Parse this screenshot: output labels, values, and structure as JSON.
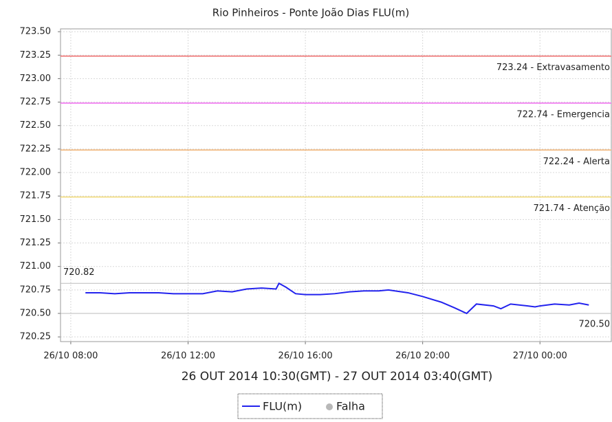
{
  "chart_data": {
    "type": "line",
    "title": "Rio Pinheiros - Ponte João Dias FLU(m)",
    "x_label": "26 OUT 2014 10:30(GMT) - 27 OUT 2014 03:40(GMT)",
    "x": [
      "2014-10-26 08:30",
      "2014-10-26 09:00",
      "2014-10-26 09:30",
      "2014-10-26 10:00",
      "2014-10-26 10:30",
      "2014-10-26 11:00",
      "2014-10-26 11:30",
      "2014-10-26 12:00",
      "2014-10-26 12:30",
      "2014-10-26 13:00",
      "2014-10-26 13:30",
      "2014-10-26 14:00",
      "2014-10-26 14:30",
      "2014-10-26 15:00",
      "2014-10-26 15:06",
      "2014-10-26 15:20",
      "2014-10-26 15:40",
      "2014-10-26 16:00",
      "2014-10-26 16:30",
      "2014-10-26 17:00",
      "2014-10-26 17:30",
      "2014-10-26 18:00",
      "2014-10-26 18:30",
      "2014-10-26 18:50",
      "2014-10-26 19:30",
      "2014-10-26 20:00",
      "2014-10-26 20:38",
      "2014-10-26 21:05",
      "2014-10-26 21:30",
      "2014-10-26 21:50",
      "2014-10-26 22:25",
      "2014-10-26 22:40",
      "2014-10-26 23:00",
      "2014-10-26 23:35",
      "2014-10-26 23:50",
      "2014-10-27 00:00",
      "2014-10-27 00:30",
      "2014-10-27 01:00",
      "2014-10-27 01:20",
      "2014-10-27 01:40"
    ],
    "series": [
      {
        "name": "FLU(m)",
        "color": "#2222ee",
        "values": [
          720.72,
          720.72,
          720.71,
          720.72,
          720.72,
          720.72,
          720.71,
          720.71,
          720.71,
          720.74,
          720.73,
          720.76,
          720.77,
          720.76,
          720.82,
          720.78,
          720.71,
          720.7,
          720.7,
          720.71,
          720.73,
          720.74,
          720.74,
          720.75,
          720.72,
          720.68,
          720.62,
          720.56,
          720.5,
          720.6,
          720.58,
          720.55,
          720.6,
          720.58,
          720.57,
          720.58,
          720.6,
          720.59,
          720.61,
          720.59
        ]
      }
    ],
    "failure_marker": {
      "name": "Falha",
      "color": "#b8b8b8"
    },
    "thresholds": [
      {
        "value": 723.24,
        "label": "723.24 - Extravasamento",
        "color": "#ee6666"
      },
      {
        "value": 722.74,
        "label": "722.74 - Emergencia",
        "color": "#ee66ee"
      },
      {
        "value": 722.24,
        "label": "722.24 - Alerta",
        "color": "#f0b070"
      },
      {
        "value": 721.74,
        "label": "721.74 - Atenção",
        "color": "#f0d870"
      }
    ],
    "max_line": {
      "value": 720.82,
      "label": "720.82",
      "color": "#bbbbbb"
    },
    "min_line": {
      "value": 720.5,
      "label": "720.50",
      "color": "#bbbbbb"
    },
    "xlim": [
      "2014-10-26 07:39",
      "2014-10-27 02:26"
    ],
    "xticks": [
      {
        "value": "2014-10-26 08:00",
        "label": "26/10 08:00"
      },
      {
        "value": "2014-10-26 12:00",
        "label": "26/10 12:00"
      },
      {
        "value": "2014-10-26 16:00",
        "label": "26/10 16:00"
      },
      {
        "value": "2014-10-26 20:00",
        "label": "26/10 20:00"
      },
      {
        "value": "2014-10-27 00:00",
        "label": "27/10 00:00"
      }
    ],
    "ylim": [
      720.2,
      723.53
    ],
    "yticks": [
      720.25,
      {
        "value": 720.5,
        "label": "720.50"
      },
      720.75,
      {
        "value": 721,
        "label": "721.00"
      },
      721.25,
      {
        "value": 721.5,
        "label": "721.50"
      },
      721.75,
      {
        "value": 722,
        "label": "722.00"
      },
      722.25,
      {
        "value": 722.5,
        "label": "722.50"
      },
      722.75,
      {
        "value": 723,
        "label": "723.00"
      },
      723.25,
      {
        "value": 723.5,
        "label": "723.50"
      }
    ],
    "grid": true
  }
}
